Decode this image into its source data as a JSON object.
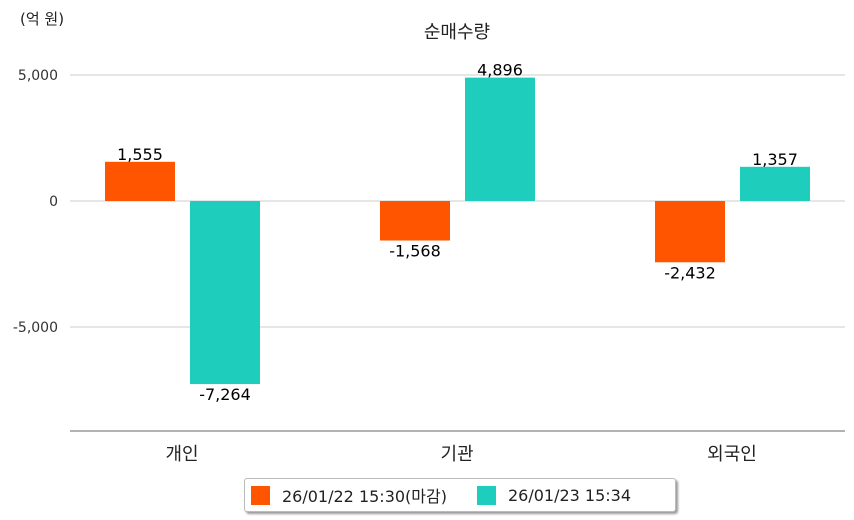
{
  "chart_data": {
    "type": "bar",
    "title": "순매수량",
    "ylabel": "(억 원)",
    "xlabel": "",
    "categories": [
      "개인",
      "기관",
      "외국인"
    ],
    "series": [
      {
        "name": "26/01/22 15:30(마감)",
        "color": "#ff5500",
        "values": [
          1555,
          -1568,
          -2432
        ],
        "labels": [
          "1,555",
          "-1,568",
          "-2,432"
        ]
      },
      {
        "name": "26/01/23 15:34",
        "color": "#1ecdbb",
        "values": [
          -7264,
          4896,
          1357
        ],
        "labels": [
          "-7,264",
          "4,896",
          "1,357"
        ]
      }
    ],
    "yticks": [
      5000,
      0,
      -5000
    ],
    "ytick_labels": [
      "5,000",
      "0",
      "-5,000"
    ],
    "ylim": [
      -9130,
      5000
    ],
    "grid": true,
    "legend_position": "bottom"
  }
}
